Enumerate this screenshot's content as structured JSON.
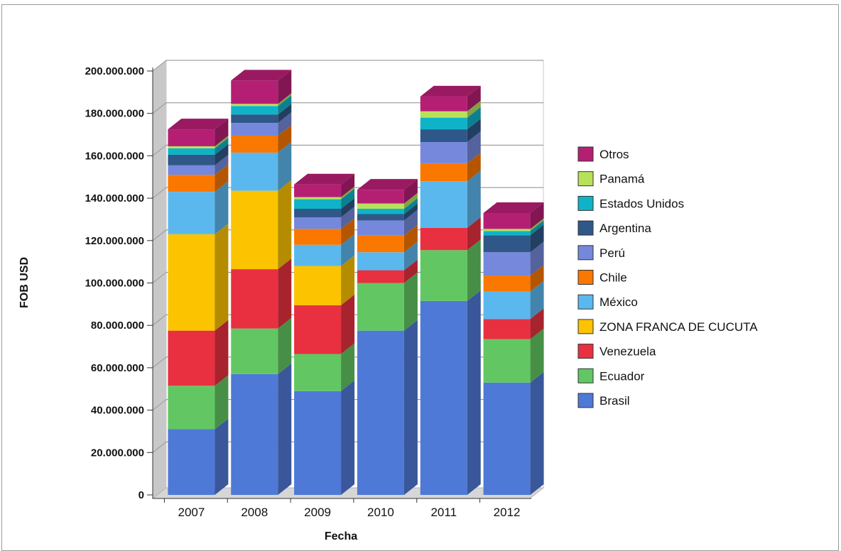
{
  "chart_data": {
    "type": "bar",
    "stacked": true,
    "title": "",
    "xlabel": "Fecha",
    "ylabel": "FOB USD",
    "ylim": [
      0,
      200000000
    ],
    "yticks": [
      0,
      20000000,
      40000000,
      60000000,
      80000000,
      100000000,
      120000000,
      140000000,
      160000000,
      180000000,
      200000000
    ],
    "ytick_labels": [
      "0",
      "20.000.000",
      "40.000.000",
      "60.000.000",
      "80.000.000",
      "100.000.000",
      "120.000.000",
      "140.000.000",
      "160.000.000",
      "180.000.000",
      "200.000.000"
    ],
    "grid": true,
    "legend_position": "right",
    "categories": [
      "2007",
      "2008",
      "2009",
      "2010",
      "2011",
      "2012"
    ],
    "series": [
      {
        "name": "Brasil",
        "color": "#4f79d6",
        "values": [
          31000000,
          57000000,
          49000000,
          77500000,
          91500000,
          53000000
        ]
      },
      {
        "name": "Ecuador",
        "color": "#62c762",
        "values": [
          20500000,
          21500000,
          17500000,
          22500000,
          24000000,
          20500000
        ]
      },
      {
        "name": "Venezuela",
        "color": "#e83040",
        "values": [
          26000000,
          28000000,
          23000000,
          6000000,
          10500000,
          9500000
        ]
      },
      {
        "name": "ZONA FRANCA DE CUCUTA",
        "color": "#fbc300",
        "values": [
          45500000,
          37000000,
          18500000,
          0,
          0,
          0
        ]
      },
      {
        "name": "México",
        "color": "#5bb8ee",
        "values": [
          20000000,
          18000000,
          10000000,
          8500000,
          22000000,
          13000000
        ]
      },
      {
        "name": "Chile",
        "color": "#fa7700",
        "values": [
          8000000,
          8000000,
          7500000,
          8000000,
          8500000,
          7500000
        ]
      },
      {
        "name": "Perú",
        "color": "#7588dc",
        "values": [
          4500000,
          6000000,
          5500000,
          7000000,
          10000000,
          11000000
        ]
      },
      {
        "name": "Argentina",
        "color": "#2f5788",
        "values": [
          5000000,
          4000000,
          4000000,
          3000000,
          6000000,
          8000000
        ]
      },
      {
        "name": "Estados Unidos",
        "color": "#0fb3c8",
        "values": [
          3000000,
          4000000,
          4500000,
          2500000,
          5500000,
          2000000
        ]
      },
      {
        "name": "Panamá",
        "color": "#b8e15a",
        "values": [
          1000000,
          1000000,
          1000000,
          2500000,
          3000000,
          1000000
        ]
      },
      {
        "name": "Otros",
        "color": "#b51f73",
        "values": [
          8000000,
          11000000,
          6000000,
          6500000,
          7000000,
          7500000
        ]
      }
    ]
  }
}
